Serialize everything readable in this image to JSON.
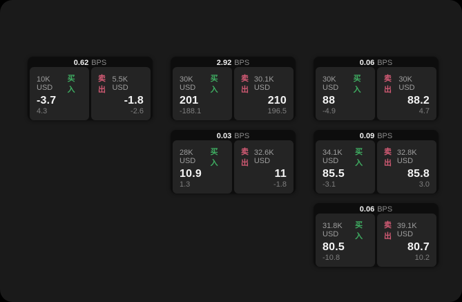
{
  "colors": {
    "background": "#1a1a1a",
    "card": "#0d0d0d",
    "panel": "#242424",
    "buy_green": "#3fae62",
    "sell_red": "#d25a74"
  },
  "labels": {
    "bps_unit": "BPS",
    "buy_tag": "买入",
    "sell_tag": "卖出"
  },
  "cards": [
    {
      "bps_value": "0.62",
      "bps_unit": "BPS",
      "buy": {
        "amount": "10K USD",
        "tag": "买入",
        "value": "-3.7",
        "sub": "4.3"
      },
      "sell": {
        "tag": "卖出",
        "amount": "5.5K USD",
        "value": "-1.8",
        "sub": "-2.6"
      }
    },
    {
      "bps_value": "2.92",
      "bps_unit": "BPS",
      "buy": {
        "amount": "30K USD",
        "tag": "买入",
        "value": "201",
        "sub": "-188.1"
      },
      "sell": {
        "tag": "卖出",
        "amount": "30.1K USD",
        "value": "210",
        "sub": "196.5"
      }
    },
    {
      "bps_value": "0.06",
      "bps_unit": "BPS",
      "buy": {
        "amount": "30K USD",
        "tag": "买入",
        "value": "88",
        "sub": "-4.9"
      },
      "sell": {
        "tag": "卖出",
        "amount": "30K USD",
        "value": "88.2",
        "sub": "4.7"
      }
    },
    {
      "bps_value": "0.03",
      "bps_unit": "BPS",
      "buy": {
        "amount": "28K USD",
        "tag": "买入",
        "value": "10.9",
        "sub": "1.3"
      },
      "sell": {
        "tag": "卖出",
        "amount": "32.6K USD",
        "value": "11",
        "sub": "-1.8"
      }
    },
    {
      "bps_value": "0.09",
      "bps_unit": "BPS",
      "buy": {
        "amount": "34.1K USD",
        "tag": "买入",
        "value": "85.5",
        "sub": "-3.1"
      },
      "sell": {
        "tag": "卖出",
        "amount": "32.8K USD",
        "value": "85.8",
        "sub": "3.0"
      }
    },
    {
      "bps_value": "0.06",
      "bps_unit": "BPS",
      "buy": {
        "amount": "31.8K USD",
        "tag": "买入",
        "value": "80.5",
        "sub": "-10.8"
      },
      "sell": {
        "tag": "卖出",
        "amount": "39.1K USD",
        "value": "80.7",
        "sub": "10.2"
      }
    }
  ]
}
